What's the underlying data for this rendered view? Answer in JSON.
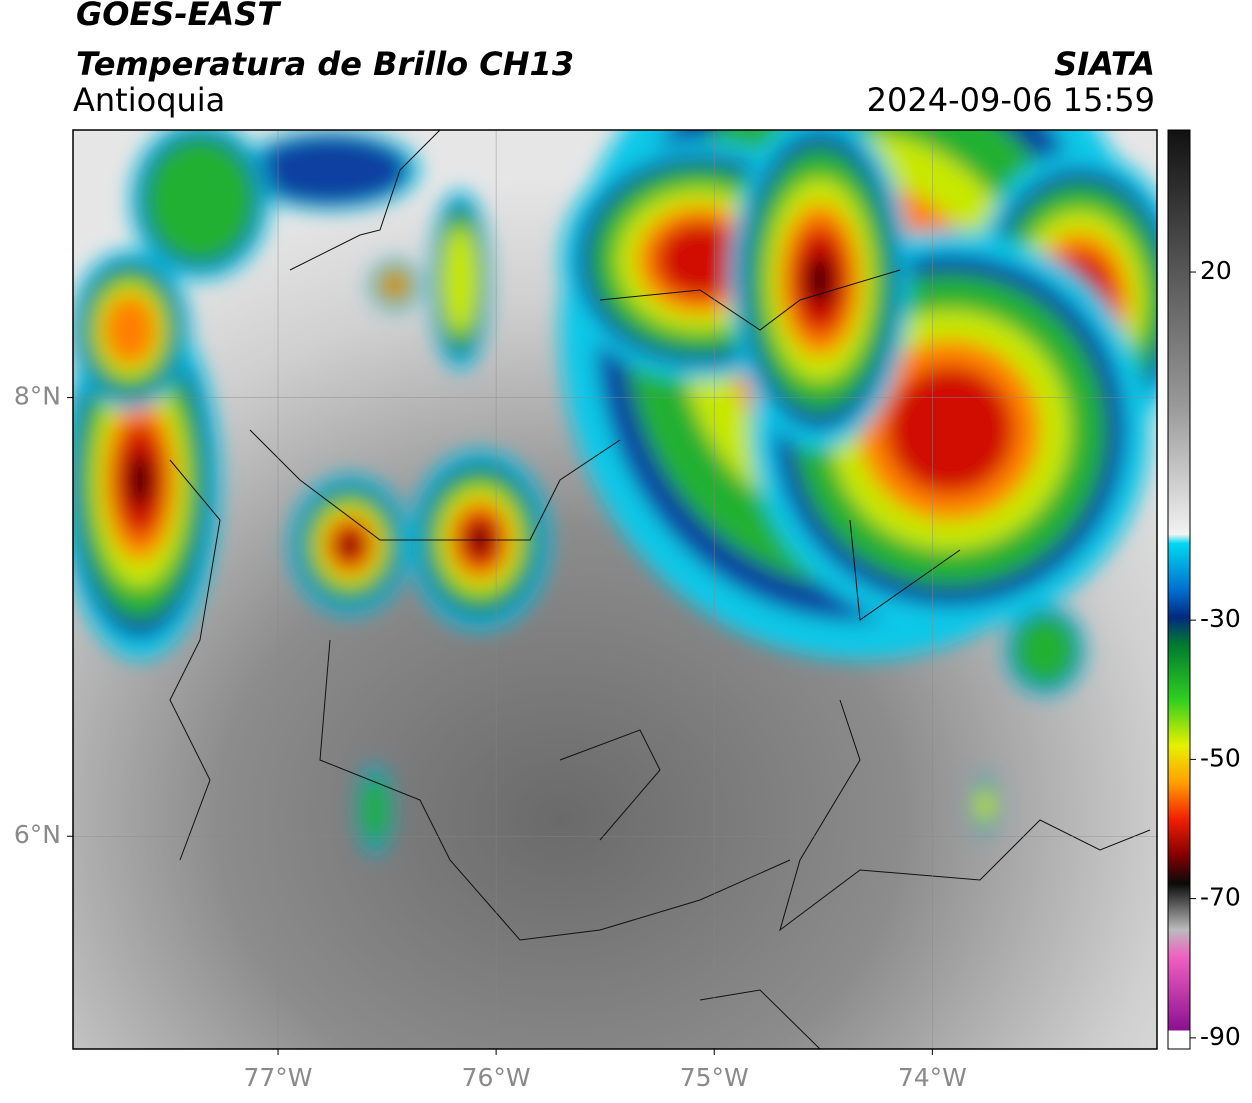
{
  "header": {
    "satellite": "GOES-EAST",
    "product": "Temperatura de Brillo CH13",
    "region": "Antioquia",
    "source": "SIATA",
    "datetime": "2024-09-06 15:59"
  },
  "map": {
    "xlim": [
      -77.94,
      -72.97
    ],
    "ylim": [
      5.03,
      9.22
    ],
    "xticks": [
      {
        "value": -77,
        "label": "77°W"
      },
      {
        "value": -76,
        "label": "76°W"
      },
      {
        "value": -75,
        "label": "75°W"
      },
      {
        "value": -74,
        "label": "74°W"
      }
    ],
    "yticks": [
      {
        "value": 6,
        "label": "6°N"
      },
      {
        "value": 8,
        "label": "8°N"
      }
    ],
    "grid": true
  },
  "colorbar": {
    "lim": [
      -91.6,
      40.4
    ],
    "ticks": [
      20,
      -30,
      -50,
      -70,
      -90
    ]
  }
}
